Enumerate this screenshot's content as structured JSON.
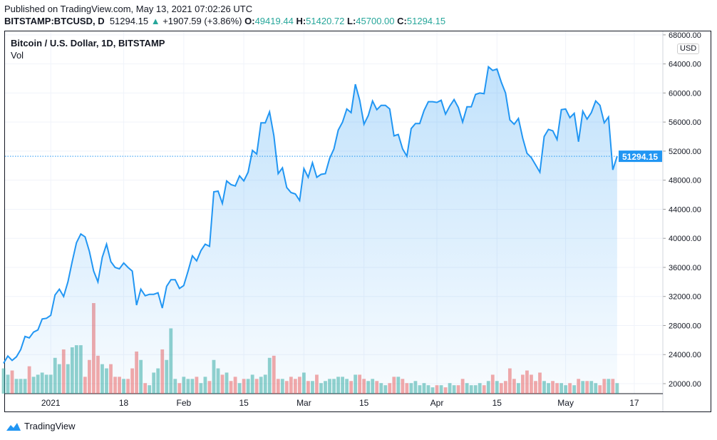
{
  "header": {
    "published": "Published on TradingView.com, May 13, 2021 07:02:26 UTC",
    "symbol": "BITSTAMP:BTCUSD, D",
    "last": "51294.15",
    "change": "+1907.59 (+3.86%)",
    "o_label": "O:",
    "open": "49419.44",
    "h_label": "H:",
    "high": "51420.72",
    "l_label": "L:",
    "low": "45700.00",
    "c_label": "C:",
    "close": "51294.15"
  },
  "legend": {
    "title": "Bitcoin / U.S. Dollar, 1D, BITSTAMP",
    "vol": "Vol"
  },
  "currency": "USD",
  "branding": "TradingView",
  "colors": {
    "line": "#2196f3",
    "up": "#26a69a",
    "down": "#ef5350",
    "price_tag": "#2196f3"
  },
  "chart_data": {
    "type": "area",
    "ylim": [
      18000,
      68500
    ],
    "y_ticks": [
      "68000.00",
      "64000.00",
      "60000.00",
      "56000.00",
      "52000.00",
      "48000.00",
      "44000.00",
      "40000.00",
      "36000.00",
      "32000.00",
      "28000.00",
      "24000.00",
      "20000.00"
    ],
    "x_ticks": [
      {
        "label": "2021",
        "date": "2021-01-01"
      },
      {
        "label": "18",
        "date": "2021-01-18"
      },
      {
        "label": "Feb",
        "date": "2021-02-01"
      },
      {
        "label": "15",
        "date": "2021-02-15"
      },
      {
        "label": "Mar",
        "date": "2021-03-01"
      },
      {
        "label": "15",
        "date": "2021-03-15"
      },
      {
        "label": "Apr",
        "date": "2021-04-01"
      },
      {
        "label": "15",
        "date": "2021-04-15"
      },
      {
        "label": "May",
        "date": "2021-05-01"
      },
      {
        "label": "17",
        "date": "2021-05-17"
      }
    ],
    "last_price_label": "51294.15",
    "grid": true,
    "close": [
      22800,
      23800,
      23200,
      23700,
      24700,
      26500,
      26300,
      27100,
      27400,
      28900,
      29000,
      29400,
      32200,
      33000,
      32000,
      34000,
      36800,
      39400,
      40600,
      40200,
      38200,
      35500,
      34000,
      37400,
      39200,
      36800,
      36000,
      35800,
      36600,
      36000,
      35500,
      30800,
      33000,
      32100,
      32300,
      32300,
      32500,
      30400,
      33400,
      34300,
      34300,
      33100,
      33500,
      35500,
      37600,
      36900,
      38300,
      39200,
      38900,
      46400,
      46500,
      44800,
      47900,
      47400,
      47200,
      48600,
      47900,
      49100,
      52100,
      51600,
      55900,
      55900,
      57400,
      54100,
      48900,
      49700,
      47000,
      46300,
      46100,
      45200,
      49600,
      48400,
      50400,
      48400,
      48800,
      48900,
      51000,
      52300,
      54900,
      56000,
      57800,
      57300,
      61200,
      59000,
      55700,
      56900,
      58900,
      57700,
      58300,
      58300,
      57800,
      54100,
      54300,
      52300,
      51300,
      55100,
      55800,
      55800,
      57600,
      58800,
      58800,
      58700,
      59000,
      57100,
      58200,
      59100,
      58000,
      56000,
      58100,
      58100,
      59800,
      60000,
      59900,
      63600,
      63100,
      63300,
      61500,
      60000,
      56300,
      55700,
      56500,
      53800,
      51700,
      51100,
      50100,
      49100,
      54000,
      55000,
      54800,
      53600,
      57700,
      57800,
      56600,
      57200,
      53300,
      57500,
      56400,
      57300,
      58900,
      58300,
      55900,
      56700,
      49419,
      51294
    ],
    "volume": [
      12,
      9,
      11,
      7,
      7,
      7,
      13,
      8,
      9,
      10,
      9,
      9,
      17,
      14,
      21,
      14,
      22,
      23,
      23,
      8,
      16,
      43,
      18,
      14,
      12,
      14,
      8,
      8,
      7,
      7,
      12,
      20,
      16,
      5,
      4,
      10,
      12,
      21,
      16,
      31,
      7,
      5,
      8,
      7,
      7,
      8,
      5,
      8,
      6,
      16,
      12,
      9,
      10,
      6,
      8,
      5,
      7,
      7,
      9,
      7,
      8,
      9,
      17,
      18,
      7,
      7,
      6,
      8,
      7,
      8,
      10,
      6,
      6,
      9,
      5,
      6,
      7,
      7,
      8,
      8,
      7,
      6,
      9,
      9,
      7,
      6,
      7,
      6,
      5,
      4,
      5,
      8,
      8,
      7,
      5,
      5,
      6,
      4,
      5,
      4,
      3,
      4,
      4,
      3,
      5,
      4,
      4,
      7,
      5,
      4,
      4,
      5,
      4,
      6,
      9,
      6,
      5,
      6,
      12,
      7,
      5,
      9,
      11,
      9,
      6,
      10,
      6,
      5,
      6,
      5,
      5,
      4,
      5,
      4,
      7,
      6,
      6,
      6,
      5,
      4,
      7,
      7,
      7,
      5
    ]
  }
}
